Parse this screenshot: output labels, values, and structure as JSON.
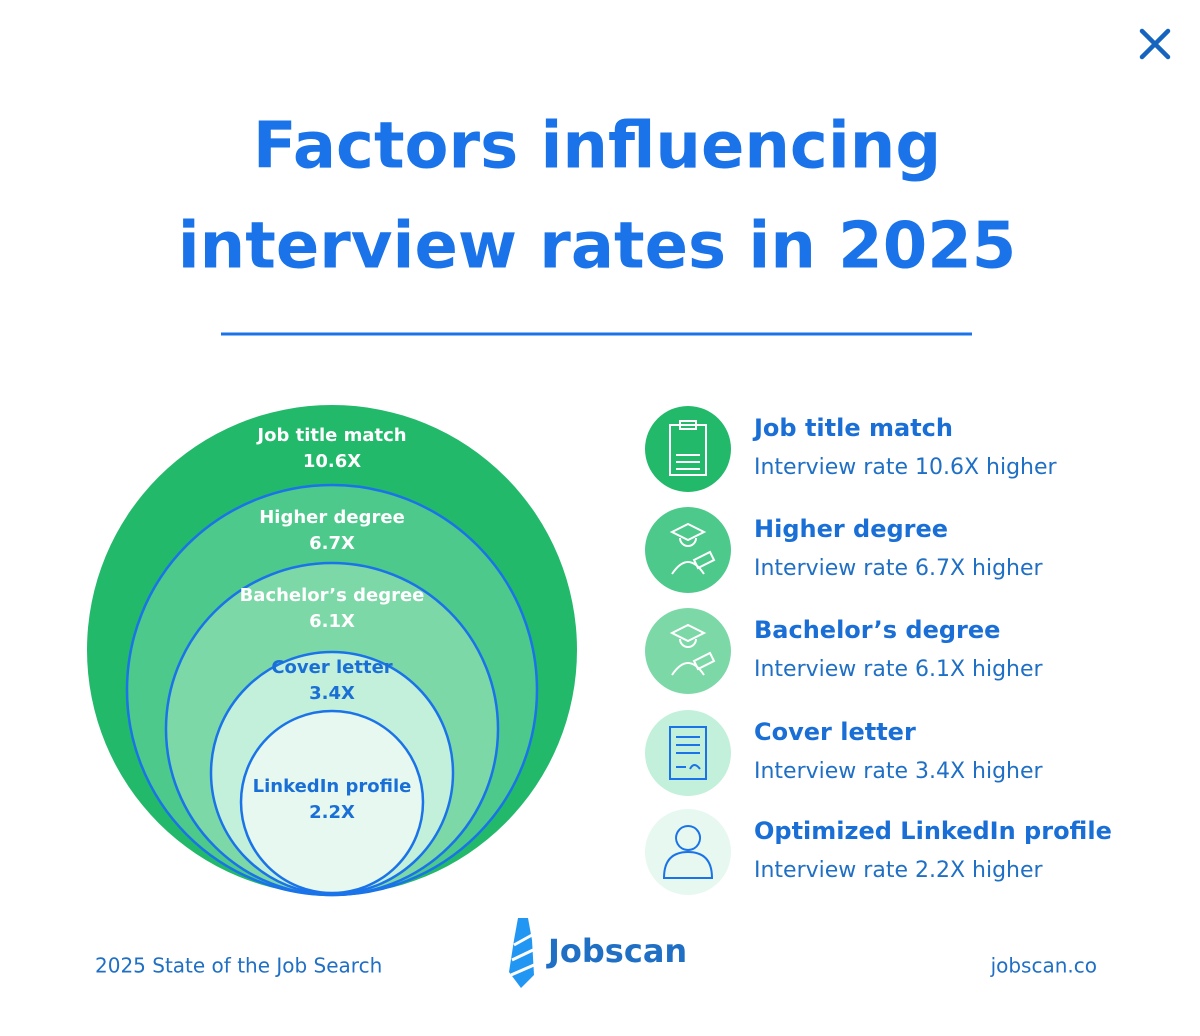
{
  "title": {
    "lines": [
      "Factors influencing",
      "interview rates in 2025"
    ]
  },
  "circles": [
    {
      "label": "Job title match",
      "value": "10.6X"
    },
    {
      "label": "Higher degree",
      "value": "6.7X"
    },
    {
      "label": "Bachelor’s degree",
      "value": "6.1X"
    },
    {
      "label": "Cover letter",
      "value": "3.4X"
    },
    {
      "label": "LinkedIn profile",
      "value": "2.2X"
    }
  ],
  "legend": [
    {
      "name": "Job title match",
      "description": "Interview rate 10.6X higher"
    },
    {
      "name": "Higher degree",
      "description": "Interview rate 6.7X higher"
    },
    {
      "name": "Bachelor’s degree",
      "description": "Interview rate 6.1X higher"
    },
    {
      "name": "Cover letter",
      "description": "Interview rate 3.4X higher"
    },
    {
      "name": "Optimized LinkedIn profile",
      "description": "Interview rate 2.2X higher"
    }
  ],
  "footer": {
    "left": "2025 State of the Job Search",
    "logo": "Jobscan",
    "right": "jobscan.co"
  }
}
